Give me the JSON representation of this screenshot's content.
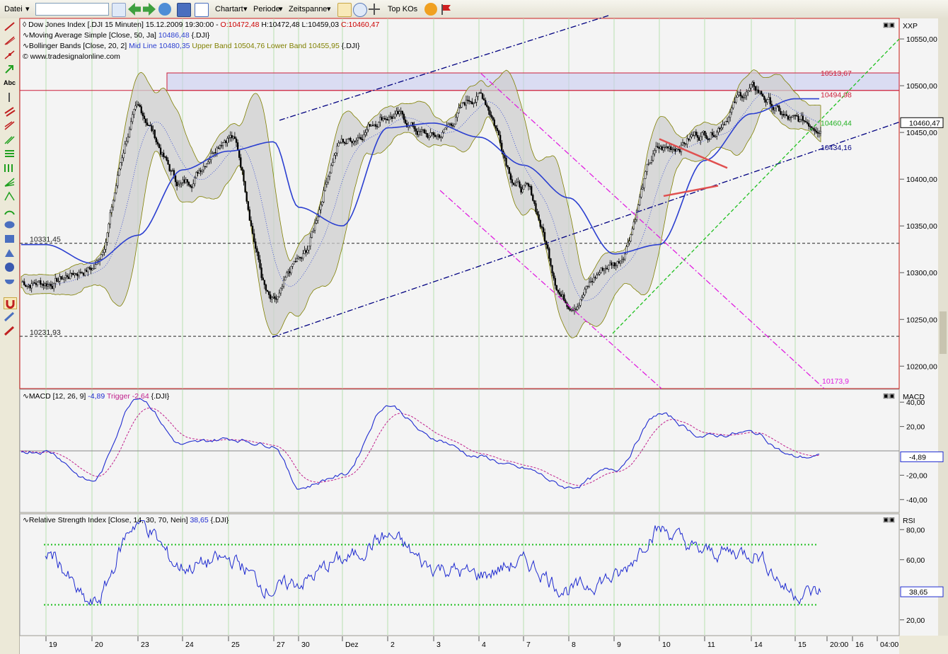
{
  "toolbar": {
    "file_menu": "Datei",
    "search_value": "",
    "chart_type": "Chartart",
    "period": "Periode",
    "time_span": "Zeitspanne",
    "top_kos": "Top KOs"
  },
  "icons": [
    "help-icon",
    "flag-icon",
    "cursor-icon",
    "zoom-icon",
    "crosshair-icon",
    "back-icon",
    "forward-icon",
    "refresh-icon",
    "save-icon",
    "list-icon"
  ],
  "legend": {
    "line1": "Dow Jones Index [.DJI  15 Minuten] 15.12.2009 19:30:00 - ",
    "ohlc_o": "O:10472,48",
    "ohlc_hl": " H:10472,48 L:10459,03 ",
    "ohlc_c": "C:10460,47",
    "ma": "Moving Average Simple [Close, 50, Ja]",
    "ma_val": "10486,48",
    "ma_sym": "{.DJI}",
    "bb": "Bollinger Bands [Close, 20, 2]",
    "bb_mid": "Mid Line",
    "bb_mid_val": "10480,35",
    "bb_up": "Upper Band 10504,76",
    "bb_low": "Lower Band 10455,95",
    "bb_sym": "{.DJI}",
    "site": "© www.tradesignalonline.com"
  },
  "price_axis": {
    "label": "XXP",
    "ticks": [
      "10550,00",
      "10500,00",
      "10450,00",
      "10400,00",
      "10350,00",
      "10300,00",
      "10250,00",
      "10200,00"
    ],
    "last": "10460,47"
  },
  "annotations": {
    "level_top": "10513,67",
    "level_zone": "10494,98",
    "green_line": "10460,44",
    "navy_line": "10434,16",
    "magenta_line": "10173,9",
    "h1": "10331,45",
    "h2": "10231,93"
  },
  "macd": {
    "legend_name": "MACD [12, 26, 9]",
    "value": "-4,89",
    "trigger": "Trigger -2,64",
    "sym": "{.DJI}",
    "axis_label": "MACD",
    "ticks": [
      "40,00",
      "20,00",
      "-20,00",
      "-40,00"
    ],
    "last": "-4,89"
  },
  "rsi": {
    "legend_name": "Relative Strength Index [Close, 14, 30, 70, Nein]",
    "value": "38,65",
    "sym": "{.DJI}",
    "axis_label": "RSI",
    "ticks": [
      "80,00",
      "60,00",
      "20,00"
    ],
    "last": "38,65"
  },
  "time_axis": [
    "19",
    "20",
    "23",
    "24",
    "25",
    "27",
    "30",
    "Dez",
    "2",
    "3",
    "4",
    "7",
    "8",
    "9",
    "10",
    "11",
    "14",
    "15",
    "20:00",
    "16",
    "04:00"
  ],
  "colors": {
    "price": "#000000",
    "ma": "#2b3fd0",
    "bb": "#808000",
    "macd": "#1f2bd0",
    "trigger": "#c0208c",
    "rsi": "#1f2bd0",
    "zone": "#cc1f3a",
    "trend_magenta": "#e020e0",
    "trend_green": "#20c020",
    "trend_navy": "#000080"
  },
  "chart_data": {
    "type": "line",
    "title": "Dow Jones Index [.DJI  15 Minuten]",
    "x": [
      "19",
      "20",
      "23",
      "24",
      "25",
      "27",
      "30",
      "Dez",
      "2",
      "3",
      "4",
      "7",
      "8",
      "9",
      "10",
      "11",
      "14",
      "15"
    ],
    "ylim": [
      10180,
      10570
    ],
    "series": [
      {
        "name": "Close",
        "values": [
          10290,
          10305,
          10470,
          10395,
          10450,
          10265,
          10310,
          10440,
          10470,
          10445,
          10490,
          10390,
          10270,
          10310,
          10430,
          10450,
          10495,
          10460
        ]
      },
      {
        "name": "Moving Average Simple [Close, 50, Ja]",
        "values": [
          10330,
          10310,
          10340,
          10410,
          10430,
          10440,
          10370,
          10350,
          10455,
          10460,
          10445,
          10415,
          10380,
          10320,
          10330,
          10420,
          10470,
          10486
        ]
      }
    ],
    "macd": {
      "ylim": [
        -50,
        50
      ],
      "values": [
        0,
        -25,
        45,
        5,
        10,
        5,
        -30,
        -20,
        38,
        10,
        -5,
        -15,
        -30,
        -15,
        30,
        12,
        15,
        -5
      ]
    },
    "rsi": {
      "ylim": [
        10,
        90
      ],
      "bands": [
        30,
        70
      ],
      "values": [
        65,
        30,
        85,
        55,
        60,
        40,
        45,
        60,
        75,
        55,
        50,
        58,
        40,
        48,
        80,
        65,
        65,
        38
      ]
    }
  }
}
